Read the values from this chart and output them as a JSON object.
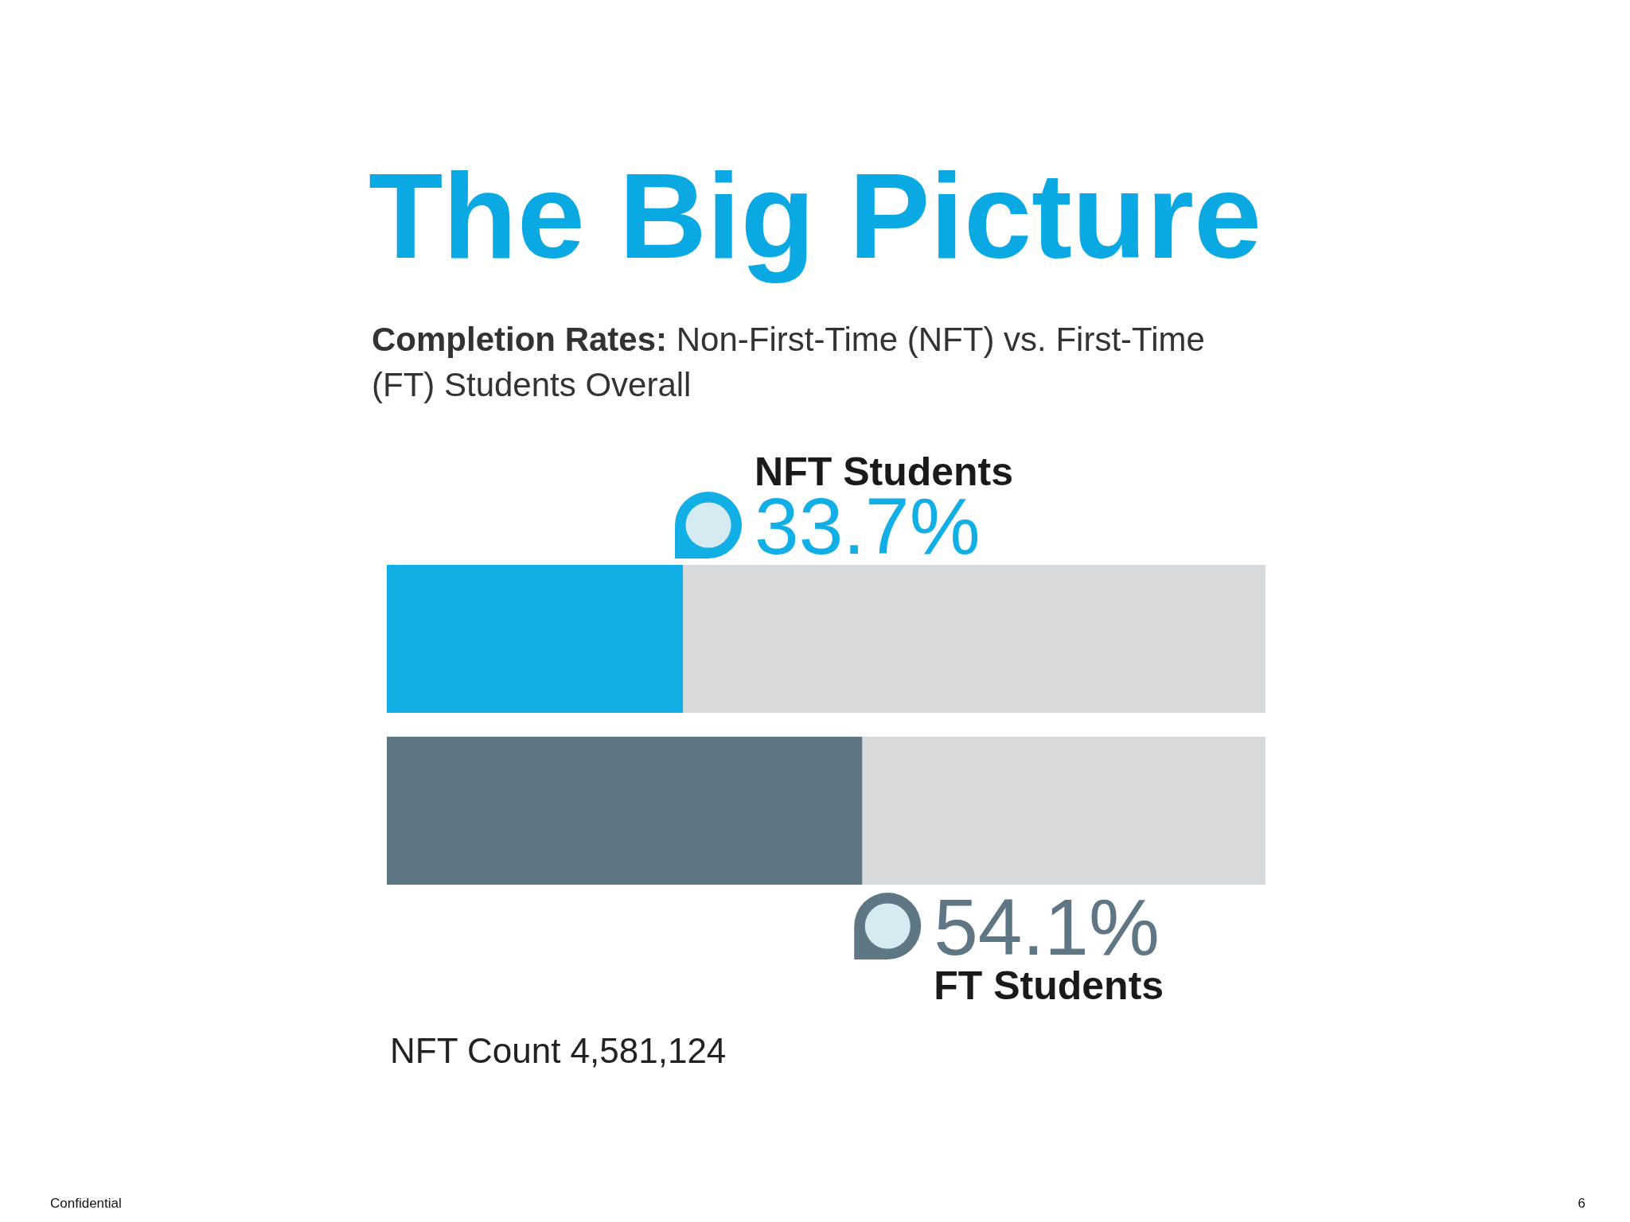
{
  "chart_data": {
    "type": "bar",
    "orientation": "horizontal",
    "stacked": true,
    "title": "The Big Picture",
    "subtitle": "Completion Rates: Non-First-Time (NFT) vs. First-Time (FT) Students Overall",
    "categories": [
      null,
      null
    ],
    "series": [
      {
        "name": "NFT Students",
        "color": "#12aee6",
        "values": [
          33.7,
          null
        ],
        "value_labels": [
          "33.7%",
          null
        ]
      },
      {
        "name": "FT Students",
        "color": "#5f7684",
        "values": [
          null,
          54.1
        ],
        "value_labels": [
          null,
          "54.1%"
        ]
      }
    ],
    "xlim": [
      0,
      100
    ],
    "tick_labels": false,
    "annotations": [
      "NFT Count 4,581,124",
      "Confidential",
      "6"
    ]
  }
}
